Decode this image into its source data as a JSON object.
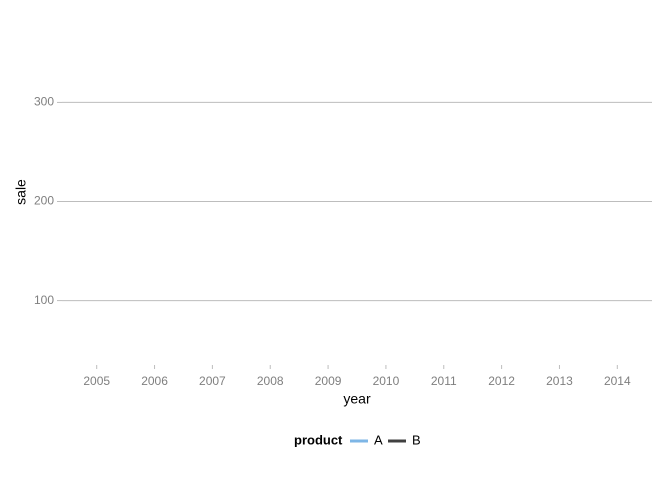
{
  "chart_data": {
    "type": "line",
    "x": [
      2005,
      2006,
      2007,
      2008,
      2009,
      2010,
      2011,
      2012,
      2013,
      2014
    ],
    "series": [
      {
        "name": "A",
        "color": "#7eb6e6",
        "values": [
          null,
          null,
          null,
          null,
          null,
          null,
          null,
          null,
          null,
          null
        ]
      },
      {
        "name": "B",
        "color": "#404040",
        "values": [
          null,
          null,
          null,
          null,
          null,
          null,
          null,
          null,
          null,
          null
        ]
      }
    ],
    "xlabel": "year",
    "ylabel": "sale",
    "legend_title": "product",
    "xlim": [
      2004.4,
      2014.6
    ],
    "xticks": [
      2005,
      2006,
      2007,
      2008,
      2009,
      2010,
      2011,
      2012,
      2013,
      2014
    ],
    "ylim": [
      35,
      363
    ],
    "yticks": [
      100,
      200,
      300
    ],
    "grid": true,
    "legend": "bottom"
  }
}
